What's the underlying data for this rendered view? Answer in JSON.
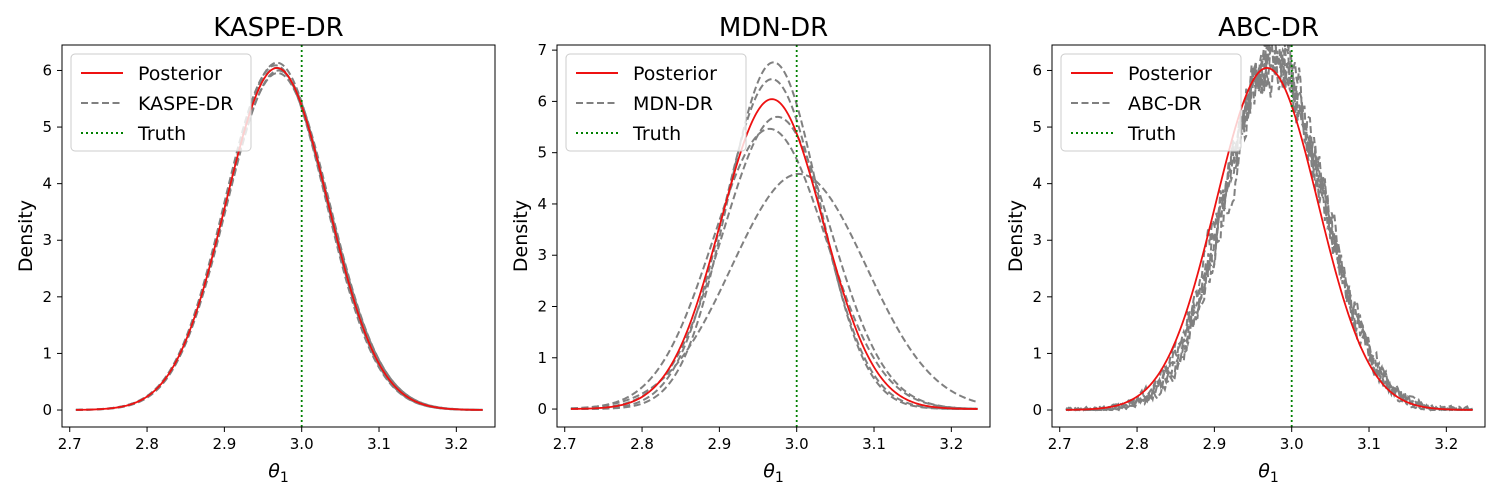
{
  "chart_data": [
    {
      "type": "line",
      "title": "KASPE-DR",
      "xlabel": "θ1",
      "ylabel": "Density",
      "xlim": [
        2.69,
        3.25
      ],
      "ylim": [
        -0.3,
        6.45
      ],
      "xticks": [
        2.7,
        2.8,
        2.9,
        3.0,
        3.1,
        3.2
      ],
      "yticks": [
        0,
        1,
        2,
        3,
        4,
        5,
        6
      ],
      "truth": 3.0,
      "legend": {
        "position": "top-left",
        "posterior": "Posterior",
        "estimate": "KASPE-DR",
        "truth": "Truth"
      },
      "posterior": {
        "mu": 2.968,
        "sigma": 0.066,
        "x_range": [
          2.708,
          3.234
        ]
      },
      "estimates": [
        {
          "mu": 2.966,
          "sigma": 0.0655
        },
        {
          "mu": 2.97,
          "sigma": 0.0665
        },
        {
          "mu": 2.968,
          "sigma": 0.065
        },
        {
          "mu": 2.967,
          "sigma": 0.066
        },
        {
          "mu": 2.969,
          "sigma": 0.067
        }
      ]
    },
    {
      "type": "line",
      "title": "MDN-DR",
      "xlabel": "θ1",
      "ylabel": "Density",
      "xlim": [
        2.69,
        3.25
      ],
      "ylim": [
        -0.35,
        7.1
      ],
      "xticks": [
        2.7,
        2.8,
        2.9,
        3.0,
        3.1,
        3.2
      ],
      "yticks": [
        0,
        1,
        2,
        3,
        4,
        5,
        6,
        7
      ],
      "truth": 3.0,
      "legend": {
        "position": "top-left",
        "posterior": "Posterior",
        "estimate": "MDN-DR",
        "truth": "Truth"
      },
      "posterior": {
        "mu": 2.968,
        "sigma": 0.066,
        "x_range": [
          2.708,
          3.234
        ]
      },
      "estimates": [
        {
          "mu": 2.97,
          "sigma": 0.059
        },
        {
          "mu": 2.968,
          "sigma": 0.062
        },
        {
          "mu": 2.975,
          "sigma": 0.07
        },
        {
          "mu": 2.965,
          "sigma": 0.073
        },
        {
          "mu": 3.003,
          "sigma": 0.087
        }
      ]
    },
    {
      "type": "line",
      "title": "ABC-DR",
      "xlabel": "θ1",
      "ylabel": "Density",
      "xlim": [
        2.69,
        3.25
      ],
      "ylim": [
        -0.3,
        6.45
      ],
      "xticks": [
        2.7,
        2.8,
        2.9,
        3.0,
        3.1,
        3.2
      ],
      "yticks": [
        0,
        1,
        2,
        3,
        4,
        5,
        6
      ],
      "truth": 3.0,
      "legend": {
        "position": "top-left",
        "posterior": "Posterior",
        "estimate": "ABC-DR",
        "truth": "Truth"
      },
      "posterior": {
        "mu": 2.968,
        "sigma": 0.066,
        "x_range": [
          2.708,
          3.234
        ]
      },
      "estimates": [
        {
          "mu": 2.978,
          "sigma": 0.064,
          "noise": 0.35
        },
        {
          "mu": 2.975,
          "sigma": 0.066,
          "noise": 0.35
        },
        {
          "mu": 2.98,
          "sigma": 0.063,
          "noise": 0.35
        },
        {
          "mu": 2.976,
          "sigma": 0.065,
          "noise": 0.35
        },
        {
          "mu": 2.979,
          "sigma": 0.0645,
          "noise": 0.35
        }
      ]
    }
  ],
  "colors": {
    "posterior": "#ee1111",
    "estimate": "#808080",
    "truth": "#008000"
  }
}
